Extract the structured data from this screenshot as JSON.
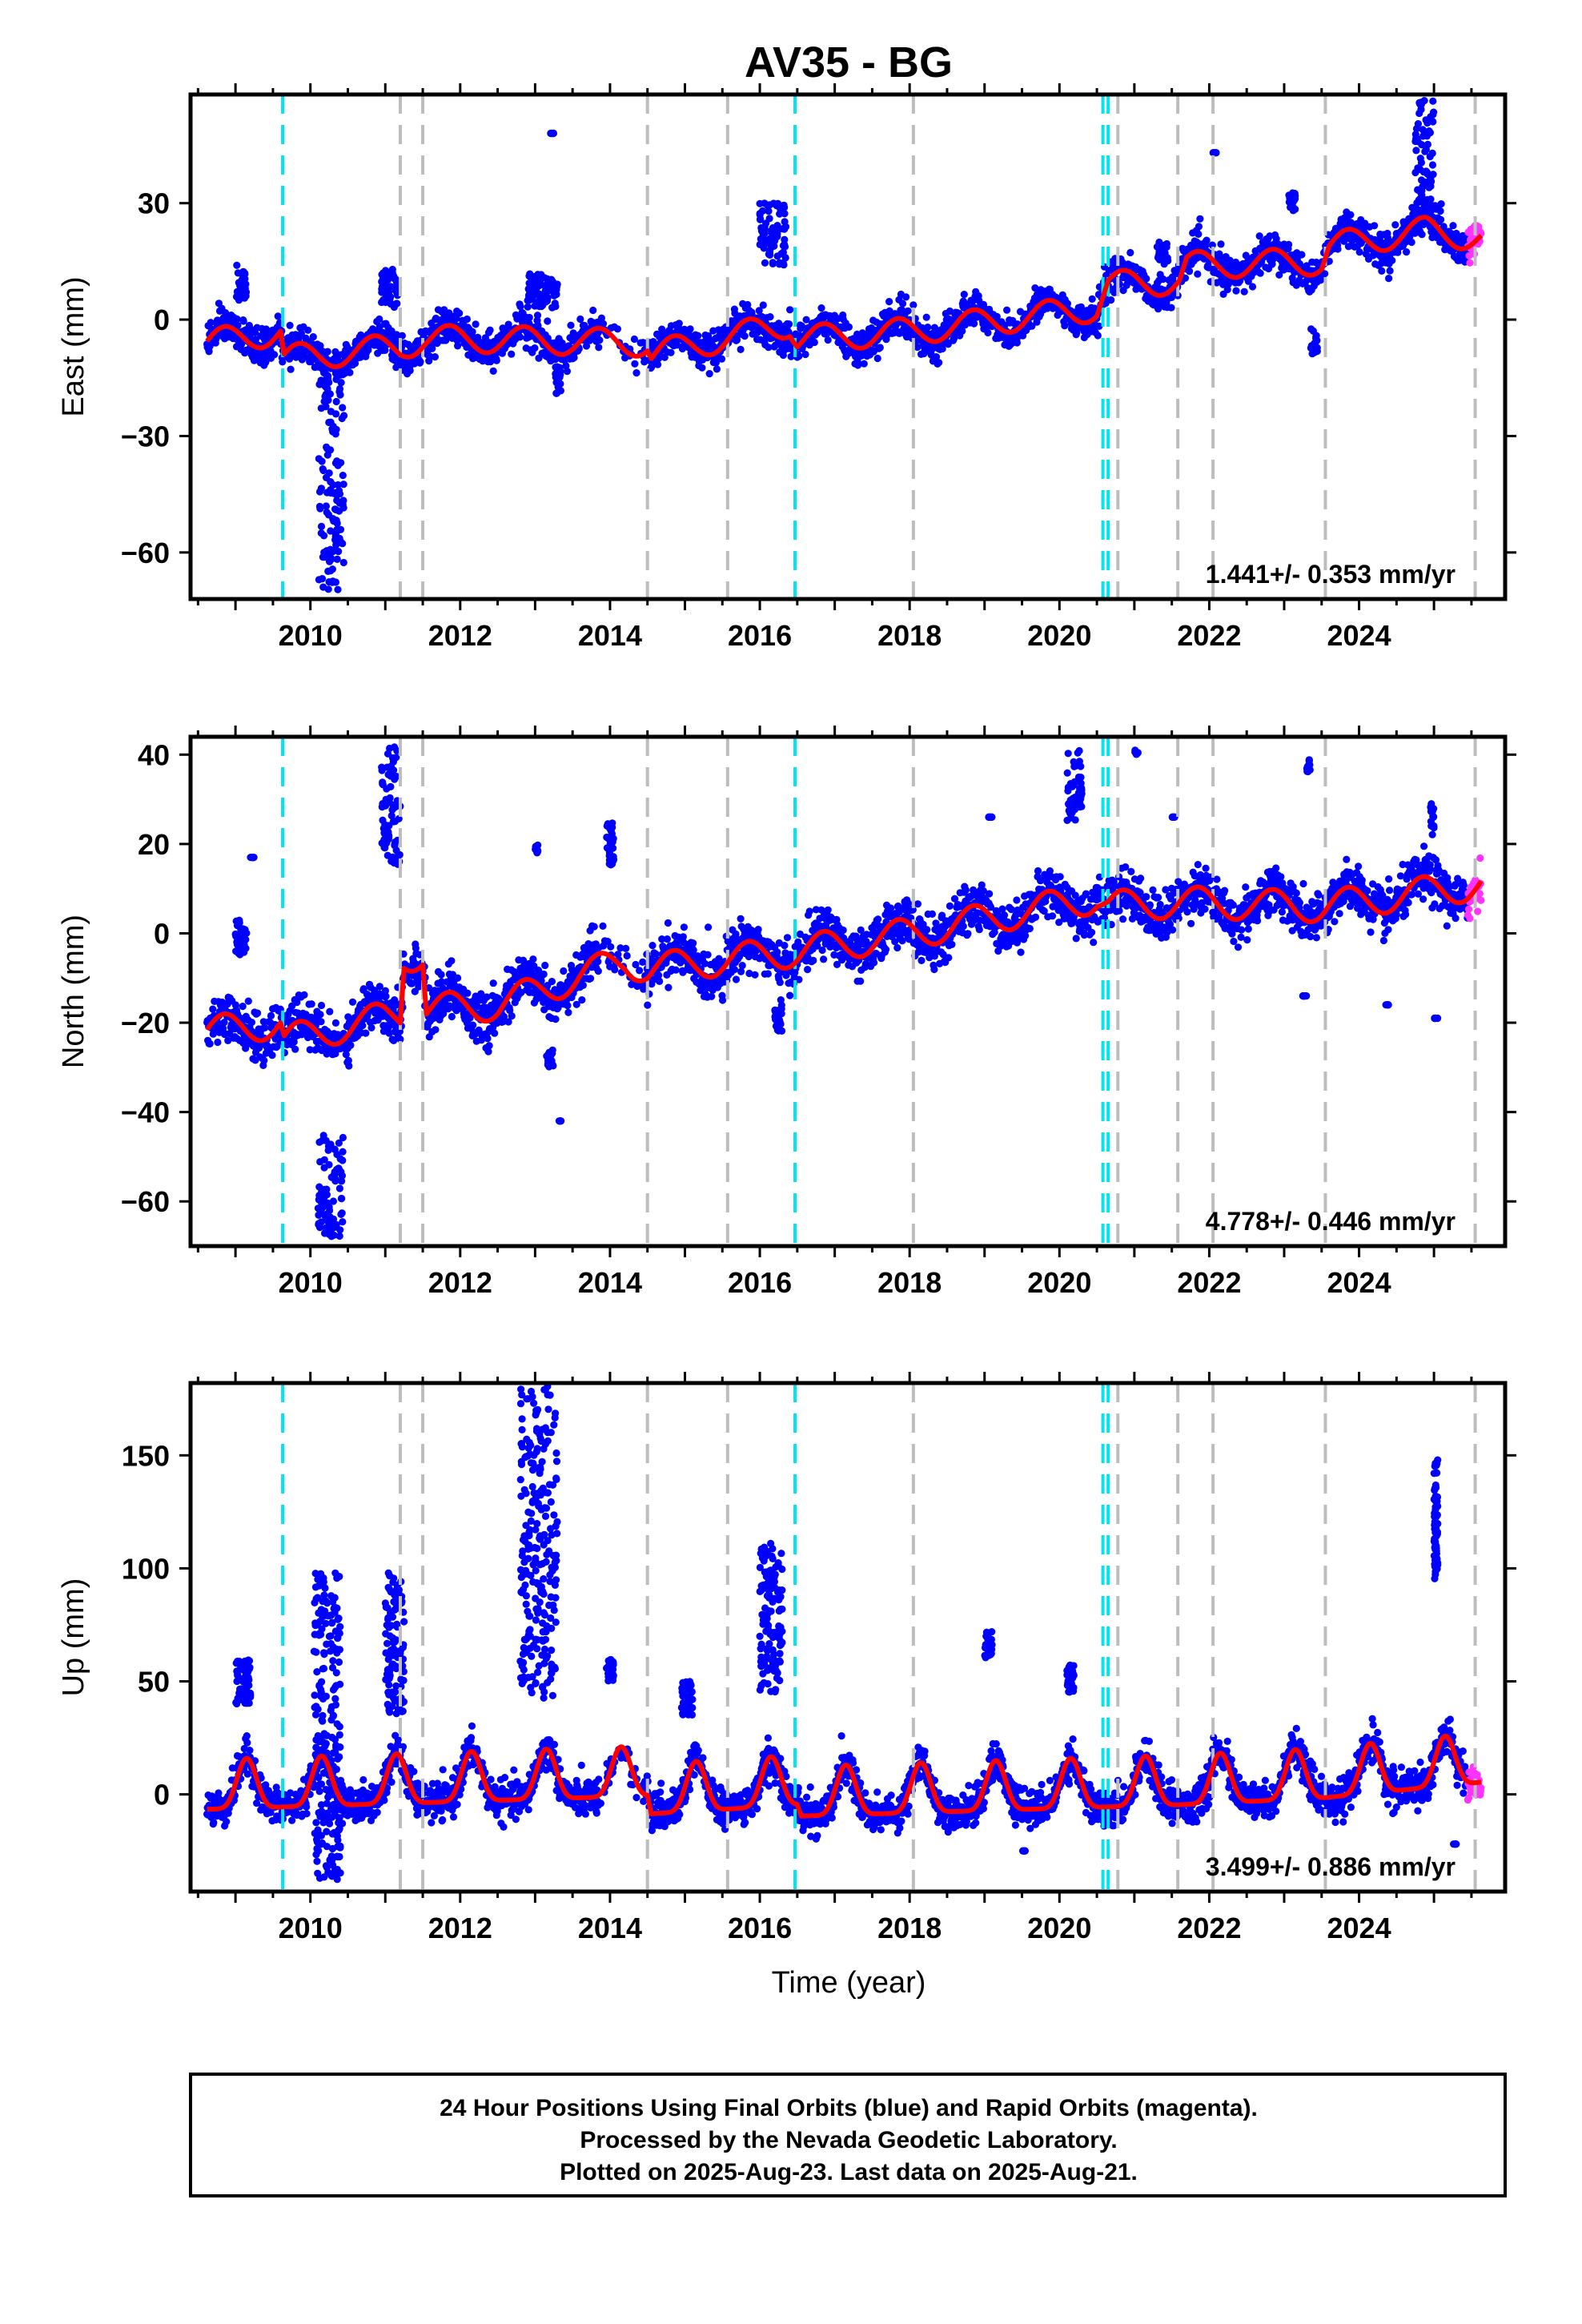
{
  "figure": {
    "title": "AV35 - BG",
    "xlabel": "Time (year)",
    "footer_lines": [
      "24 Hour Positions Using Final Orbits (blue) and Rapid Orbits (magenta).",
      "Processed by the Nevada Geodetic Laboratory.",
      "Plotted on 2025-Aug-23. Last data on 2025-Aug-21."
    ],
    "colors": {
      "final_orbits": "#0000ff",
      "rapid_orbits": "#ff33ff",
      "model": "#ff0000",
      "equipment_change": "#00e5ee",
      "step_offset": "#bdbdbd"
    }
  },
  "chart_data": [
    {
      "type": "scatter",
      "component": "east",
      "ylabel": "East (mm)",
      "rate_label": "1.441+/- 0.353 mm/yr",
      "xlim": [
        2008.4,
        2025.95
      ],
      "ylim": [
        -72,
        58
      ],
      "xticks": [
        2010,
        2012,
        2014,
        2016,
        2018,
        2020,
        2022,
        2024
      ],
      "yticks": [
        -60,
        -30,
        0,
        30
      ],
      "grid": false,
      "start": 2008.62,
      "end": 2025.63,
      "rapid_start": 2025.45,
      "trend_points": [
        [
          2008.62,
          -6
        ],
        [
          2009.6,
          -3
        ],
        [
          2009.65,
          -10
        ],
        [
          2011.2,
          -7
        ],
        [
          2011.5,
          -5
        ],
        [
          2012.2,
          -5
        ],
        [
          2014.5,
          -6
        ],
        [
          2014.55,
          -9
        ],
        [
          2016.4,
          -1
        ],
        [
          2016.5,
          -5
        ],
        [
          2018.0,
          -3
        ],
        [
          2020.5,
          3
        ],
        [
          2020.65,
          9
        ],
        [
          2021.6,
          10
        ],
        [
          2021.7,
          14
        ],
        [
          2023.5,
          15
        ],
        [
          2023.6,
          19
        ],
        [
          2024.9,
          23
        ],
        [
          2025.63,
          21
        ]
      ],
      "seasonal_amplitude": 3.5,
      "scatter_sd": 2.2,
      "outlier_clusters": [
        {
          "x": [
            2009.0,
            2009.15
          ],
          "y": [
            5,
            14
          ]
        },
        {
          "x": [
            2010.1,
            2010.45
          ],
          "y": [
            -70,
            -15
          ]
        },
        {
          "x": [
            2010.95,
            2011.2
          ],
          "y": [
            3,
            13
          ]
        },
        {
          "x": [
            2012.9,
            2013.3
          ],
          "y": [
            3,
            12
          ]
        },
        {
          "x": [
            2013.2,
            2013.25
          ],
          "y": [
            48,
            48
          ]
        },
        {
          "x": [
            2013.25,
            2013.35
          ],
          "y": [
            -19,
            -12
          ]
        },
        {
          "x": [
            2016.0,
            2016.35
          ],
          "y": [
            14,
            30
          ]
        },
        {
          "x": [
            2021.3,
            2021.45
          ],
          "y": [
            14,
            20
          ]
        },
        {
          "x": [
            2022.05,
            2022.1
          ],
          "y": [
            43,
            43
          ]
        },
        {
          "x": [
            2023.05,
            2023.15
          ],
          "y": [
            28,
            33
          ]
        },
        {
          "x": [
            2023.35,
            2023.45
          ],
          "y": [
            -9,
            -2
          ]
        },
        {
          "x": [
            2024.75,
            2025.0
          ],
          "y": [
            28,
            57
          ]
        }
      ]
    },
    {
      "type": "scatter",
      "component": "north",
      "ylabel": "North (mm)",
      "rate_label": "4.778+/- 0.446 mm/yr",
      "xlim": [
        2008.4,
        2025.95
      ],
      "ylim": [
        -70,
        44
      ],
      "xticks": [
        2010,
        2012,
        2014,
        2016,
        2018,
        2020,
        2022,
        2024
      ],
      "yticks": [
        -60,
        -40,
        -20,
        0,
        20,
        40
      ],
      "grid": false,
      "start": 2008.62,
      "end": 2025.63,
      "rapid_start": 2025.45,
      "trend_points": [
        [
          2008.62,
          -22
        ],
        [
          2009.6,
          -20
        ],
        [
          2009.65,
          -24
        ],
        [
          2011.2,
          -18
        ],
        [
          2011.25,
          -5
        ],
        [
          2011.5,
          -5
        ],
        [
          2011.55,
          -17
        ],
        [
          2012.5,
          -16
        ],
        [
          2014.2,
          -6
        ],
        [
          2014.5,
          -8
        ],
        [
          2016.5,
          -4
        ],
        [
          2018.0,
          0
        ],
        [
          2020.5,
          8
        ],
        [
          2020.65,
          6
        ],
        [
          2021.6,
          7
        ],
        [
          2023.5,
          6
        ],
        [
          2025.63,
          11
        ]
      ],
      "seasonal_amplitude": 3.5,
      "scatter_sd": 2.6,
      "outlier_clusters": [
        {
          "x": [
            2009.2,
            2009.25
          ],
          "y": [
            17,
            17
          ]
        },
        {
          "x": [
            2009.0,
            2009.15
          ],
          "y": [
            -5,
            3
          ]
        },
        {
          "x": [
            2010.1,
            2010.45
          ],
          "y": [
            -68,
            -45
          ]
        },
        {
          "x": [
            2010.95,
            2011.2
          ],
          "y": [
            15,
            42
          ]
        },
        {
          "x": [
            2013.0,
            2013.05
          ],
          "y": [
            18,
            20
          ]
        },
        {
          "x": [
            2013.15,
            2013.25
          ],
          "y": [
            -30,
            -26
          ]
        },
        {
          "x": [
            2013.3,
            2013.35
          ],
          "y": [
            -42,
            -42
          ]
        },
        {
          "x": [
            2013.95,
            2014.05
          ],
          "y": [
            15,
            25
          ]
        },
        {
          "x": [
            2016.2,
            2016.3
          ],
          "y": [
            -22,
            -16
          ]
        },
        {
          "x": [
            2019.05,
            2019.1
          ],
          "y": [
            26,
            26
          ]
        },
        {
          "x": [
            2020.1,
            2020.3
          ],
          "y": [
            25,
            41
          ]
        },
        {
          "x": [
            2021.0,
            2021.05
          ],
          "y": [
            40,
            41
          ]
        },
        {
          "x": [
            2021.5,
            2021.55
          ],
          "y": [
            26,
            26
          ]
        },
        {
          "x": [
            2023.3,
            2023.35
          ],
          "y": [
            36,
            39
          ]
        },
        {
          "x": [
            2023.25,
            2023.3
          ],
          "y": [
            -14,
            -14
          ]
        },
        {
          "x": [
            2024.35,
            2024.4
          ],
          "y": [
            -16,
            -16
          ]
        },
        {
          "x": [
            2024.95,
            2025.0
          ],
          "y": [
            22,
            29
          ]
        },
        {
          "x": [
            2025.0,
            2025.05
          ],
          "y": [
            -19,
            -19
          ]
        }
      ]
    },
    {
      "type": "scatter",
      "component": "up",
      "ylabel": "Up (mm)",
      "rate_label": "3.499+/- 0.886 mm/yr",
      "xlim": [
        2008.4,
        2025.95
      ],
      "ylim": [
        -43,
        182
      ],
      "xticks": [
        2010,
        2012,
        2014,
        2016,
        2018,
        2020,
        2022,
        2024
      ],
      "yticks": [
        0,
        50,
        100,
        150
      ],
      "grid": false,
      "start": 2008.62,
      "end": 2025.63,
      "rapid_start": 2025.45,
      "trend_points": [
        [
          2008.62,
          0
        ],
        [
          2014.5,
          6
        ],
        [
          2014.55,
          -2
        ],
        [
          2016.5,
          2
        ],
        [
          2016.55,
          -3
        ],
        [
          2021.6,
          2
        ],
        [
          2023.5,
          5
        ],
        [
          2025.63,
          12
        ]
      ],
      "seasonal_amplitude": 11,
      "scatter_sd": 4,
      "outlier_clusters": [
        {
          "x": [
            2009.0,
            2009.2
          ],
          "y": [
            40,
            60
          ]
        },
        {
          "x": [
            2010.05,
            2010.4
          ],
          "y": [
            -38,
            98
          ]
        },
        {
          "x": [
            2011.0,
            2011.25
          ],
          "y": [
            35,
            98
          ]
        },
        {
          "x": [
            2012.8,
            2013.3
          ],
          "y": [
            40,
            181
          ]
        },
        {
          "x": [
            2013.95,
            2014.05
          ],
          "y": [
            50,
            60
          ]
        },
        {
          "x": [
            2014.95,
            2015.1
          ],
          "y": [
            35,
            50
          ]
        },
        {
          "x": [
            2016.0,
            2016.3
          ],
          "y": [
            45,
            111
          ]
        },
        {
          "x": [
            2019.0,
            2019.1
          ],
          "y": [
            60,
            72
          ]
        },
        {
          "x": [
            2019.5,
            2019.55
          ],
          "y": [
            -25,
            -25
          ]
        },
        {
          "x": [
            2020.1,
            2020.2
          ],
          "y": [
            45,
            58
          ]
        },
        {
          "x": [
            2025.0,
            2025.05
          ],
          "y": [
            95,
            148
          ]
        },
        {
          "x": [
            2025.25,
            2025.3
          ],
          "y": [
            -22,
            -22
          ]
        }
      ]
    }
  ],
  "break_lines": {
    "equipment_change": [
      2009.63,
      2016.47,
      2020.58,
      2020.65
    ],
    "step_offset": [
      2011.2,
      2011.5,
      2014.5,
      2015.57,
      2018.05,
      2020.78,
      2021.58,
      2022.05,
      2023.55,
      2025.55
    ]
  }
}
